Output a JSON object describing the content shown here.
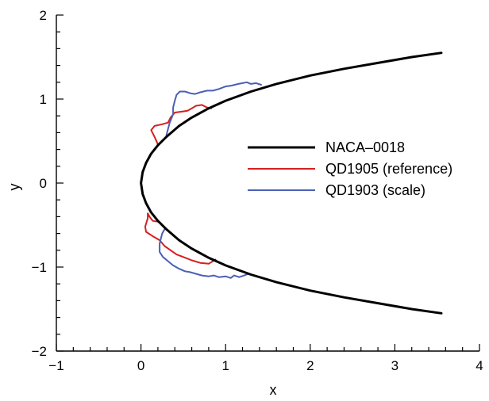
{
  "chart_data": {
    "type": "line",
    "xlabel": "x",
    "ylabel": "y",
    "xlim": [
      -1,
      4
    ],
    "ylim": [
      -2,
      2
    ],
    "x_ticks": [
      -1,
      0,
      1,
      2,
      3,
      4
    ],
    "y_ticks": [
      -2,
      -1,
      0,
      1,
      2
    ],
    "x_tick_labels": [
      "−1",
      "0",
      "1",
      "2",
      "3",
      "4"
    ],
    "y_tick_labels": [
      "−2",
      "−1",
      "0",
      "1",
      "2"
    ],
    "grid": false,
    "legend_position": "center-right",
    "series": [
      {
        "name": "NACA–0018",
        "color": "#000000",
        "points": [
          [
            3.55,
            1.55
          ],
          [
            3.2,
            1.5
          ],
          [
            2.8,
            1.43
          ],
          [
            2.4,
            1.36
          ],
          [
            2.0,
            1.28
          ],
          [
            1.6,
            1.18
          ],
          [
            1.3,
            1.09
          ],
          [
            1.0,
            0.98
          ],
          [
            0.8,
            0.89
          ],
          [
            0.6,
            0.78
          ],
          [
            0.45,
            0.68
          ],
          [
            0.3,
            0.55
          ],
          [
            0.2,
            0.45
          ],
          [
            0.12,
            0.35
          ],
          [
            0.06,
            0.24
          ],
          [
            0.02,
            0.13
          ],
          [
            0.0,
            0.0
          ],
          [
            0.02,
            -0.13
          ],
          [
            0.06,
            -0.24
          ],
          [
            0.12,
            -0.35
          ],
          [
            0.2,
            -0.45
          ],
          [
            0.3,
            -0.55
          ],
          [
            0.45,
            -0.68
          ],
          [
            0.6,
            -0.78
          ],
          [
            0.8,
            -0.89
          ],
          [
            1.0,
            -0.98
          ],
          [
            1.3,
            -1.09
          ],
          [
            1.6,
            -1.18
          ],
          [
            2.0,
            -1.28
          ],
          [
            2.4,
            -1.36
          ],
          [
            2.8,
            -1.43
          ],
          [
            3.2,
            -1.5
          ],
          [
            3.55,
            -1.55
          ]
        ]
      },
      {
        "name": "QD1905 (reference)",
        "color": "#d42020",
        "points": [
          [
            0.2,
            0.46
          ],
          [
            0.16,
            0.55
          ],
          [
            0.12,
            0.63
          ],
          [
            0.16,
            0.68
          ],
          [
            0.25,
            0.7
          ],
          [
            0.32,
            0.72
          ],
          [
            0.35,
            0.78
          ],
          [
            0.4,
            0.84
          ],
          [
            0.48,
            0.85
          ],
          [
            0.55,
            0.86
          ],
          [
            0.6,
            0.89
          ],
          [
            0.65,
            0.92
          ],
          [
            0.72,
            0.93
          ],
          [
            0.78,
            0.9
          ],
          [
            0.83,
            0.89
          ]
        ],
        "points_lower": [
          [
            0.2,
            -0.46
          ],
          [
            0.14,
            -0.45
          ],
          [
            0.1,
            -0.4
          ],
          [
            0.08,
            -0.36
          ],
          [
            0.08,
            -0.42
          ],
          [
            0.05,
            -0.52
          ],
          [
            0.06,
            -0.58
          ],
          [
            0.15,
            -0.64
          ],
          [
            0.22,
            -0.68
          ],
          [
            0.28,
            -0.75
          ],
          [
            0.35,
            -0.8
          ],
          [
            0.42,
            -0.85
          ],
          [
            0.5,
            -0.88
          ],
          [
            0.6,
            -0.92
          ],
          [
            0.7,
            -0.95
          ],
          [
            0.8,
            -0.96
          ],
          [
            0.85,
            -0.93
          ],
          [
            0.88,
            -0.91
          ]
        ]
      },
      {
        "name": "QD1903 (scale)",
        "color": "#4a5fb5",
        "points": [
          [
            0.3,
            0.57
          ],
          [
            0.34,
            0.72
          ],
          [
            0.38,
            0.82
          ],
          [
            0.38,
            0.9
          ],
          [
            0.4,
            0.98
          ],
          [
            0.42,
            1.05
          ],
          [
            0.46,
            1.09
          ],
          [
            0.52,
            1.09
          ],
          [
            0.58,
            1.07
          ],
          [
            0.64,
            1.06
          ],
          [
            0.7,
            1.08
          ],
          [
            0.78,
            1.1
          ],
          [
            0.85,
            1.1
          ],
          [
            0.92,
            1.12
          ],
          [
            1.0,
            1.15
          ],
          [
            1.07,
            1.16
          ],
          [
            1.15,
            1.18
          ],
          [
            1.2,
            1.19
          ],
          [
            1.25,
            1.2
          ],
          [
            1.3,
            1.18
          ],
          [
            1.36,
            1.19
          ],
          [
            1.42,
            1.17
          ]
        ],
        "points_lower": [
          [
            0.28,
            -0.55
          ],
          [
            0.25,
            -0.6
          ],
          [
            0.22,
            -0.72
          ],
          [
            0.22,
            -0.82
          ],
          [
            0.26,
            -0.88
          ],
          [
            0.32,
            -0.93
          ],
          [
            0.38,
            -0.98
          ],
          [
            0.45,
            -1.02
          ],
          [
            0.52,
            -1.05
          ],
          [
            0.58,
            -1.06
          ],
          [
            0.65,
            -1.08
          ],
          [
            0.72,
            -1.1
          ],
          [
            0.8,
            -1.11
          ],
          [
            0.86,
            -1.1
          ],
          [
            0.92,
            -1.12
          ],
          [
            1.0,
            -1.11
          ],
          [
            1.06,
            -1.13
          ],
          [
            1.1,
            -1.1
          ],
          [
            1.16,
            -1.12
          ],
          [
            1.22,
            -1.1
          ],
          [
            1.27,
            -1.08
          ]
        ]
      }
    ]
  }
}
